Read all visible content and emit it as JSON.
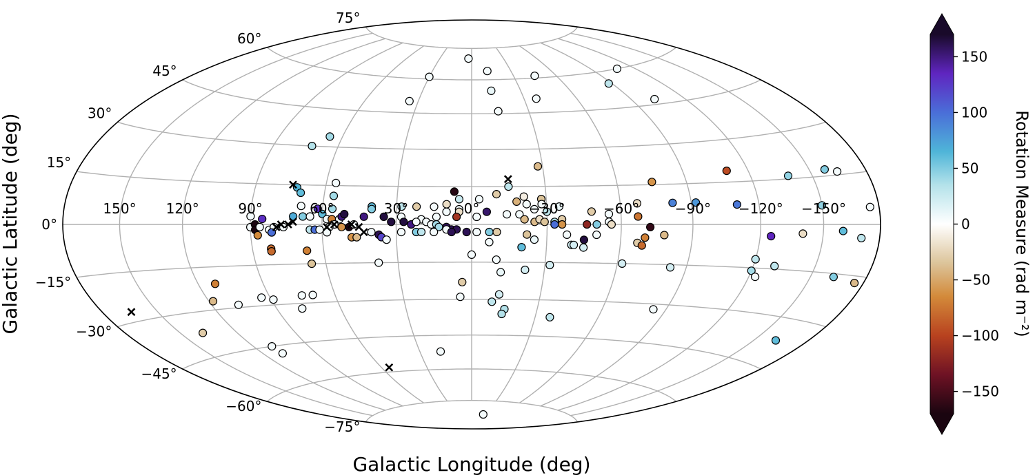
{
  "chart_data": {
    "type": "scatter",
    "projection": "hammer-aitoff",
    "xlabel": "Galactic Longitude (deg)",
    "ylabel": "Galactic Latitude (deg)",
    "grid": true,
    "x_tick_labels": [
      {
        "lon": 150,
        "label": "150°"
      },
      {
        "lon": 120,
        "label": "120°"
      },
      {
        "lon": 90,
        "label": "90°"
      },
      {
        "lon": 60,
        "label": "60°"
      },
      {
        "lon": 30,
        "label": "30°"
      },
      {
        "lon": 0,
        "label": "0°"
      },
      {
        "lon": -30,
        "label": "−30°"
      },
      {
        "lon": -60,
        "label": "−60°"
      },
      {
        "lon": -90,
        "label": "−90°"
      },
      {
        "lon": -120,
        "label": "−120°"
      },
      {
        "lon": -150,
        "label": "−150°"
      }
    ],
    "y_tick_labels": [
      {
        "lat": 75,
        "label": "75°"
      },
      {
        "lat": 60,
        "label": "60°"
      },
      {
        "lat": 45,
        "label": "45°"
      },
      {
        "lat": 30,
        "label": "30°"
      },
      {
        "lat": 15,
        "label": "15°"
      },
      {
        "lat": 0,
        "label": "0°"
      },
      {
        "lat": -15,
        "label": "−15°"
      },
      {
        "lat": -30,
        "label": "−30°"
      },
      {
        "lat": -45,
        "label": "−45°"
      },
      {
        "lat": -60,
        "label": "−60°"
      },
      {
        "lat": -75,
        "label": "−75°"
      }
    ],
    "colorbar": {
      "label": "Rotation Measure (rad m⁻²)",
      "range": [
        -170,
        170
      ],
      "extend": "both",
      "ticks": [
        {
          "value": 150,
          "label": "150"
        },
        {
          "value": 100,
          "label": "100"
        },
        {
          "value": 50,
          "label": "50"
        },
        {
          "value": 0,
          "label": "0"
        },
        {
          "value": -50,
          "label": "−50"
        },
        {
          "value": -100,
          "label": "−100"
        },
        {
          "value": -150,
          "label": "−150"
        }
      ],
      "stops": [
        {
          "v": -170,
          "c": "#1a0510"
        },
        {
          "v": -135,
          "c": "#6e1224"
        },
        {
          "v": -100,
          "c": "#b8421f"
        },
        {
          "v": -65,
          "c": "#d38a3a"
        },
        {
          "v": -35,
          "c": "#dcc49a"
        },
        {
          "v": 0,
          "c": "#ffffff"
        },
        {
          "v": 35,
          "c": "#b4e2ea"
        },
        {
          "v": 65,
          "c": "#4fb5d8"
        },
        {
          "v": 100,
          "c": "#4a6ed8"
        },
        {
          "v": 135,
          "c": "#5f25c0"
        },
        {
          "v": 170,
          "c": "#190a2a"
        }
      ]
    },
    "points": [
      {
        "lon": 3,
        "lat": 70,
        "rm": 5
      },
      {
        "lon": -12,
        "lat": 64,
        "rm": 5
      },
      {
        "lon": -45,
        "lat": 61,
        "rm": 5
      },
      {
        "lon": -108,
        "lat": 60,
        "rm": 5
      },
      {
        "lon": -88,
        "lat": 55,
        "rm": 30
      },
      {
        "lon": 30,
        "lat": 61,
        "rm": 5
      },
      {
        "lon": -12,
        "lat": 55,
        "rm": 10
      },
      {
        "lon": -37,
        "lat": 51,
        "rm": 5
      },
      {
        "lon": 35,
        "lat": 50,
        "rm": 5
      },
      {
        "lon": -14,
        "lat": 46,
        "rm": 5
      },
      {
        "lon": -103,
        "lat": 47,
        "rm": 5
      },
      {
        "lon": 66,
        "lat": 34,
        "rm": 40
      },
      {
        "lon": 72,
        "lat": 30,
        "rm": 35
      },
      {
        "lon": -28,
        "lat": 23,
        "rm": -40
      },
      {
        "lon": -110,
        "lat": 19,
        "rm": -95
      },
      {
        "lon": -138,
        "lat": 16,
        "rm": 45
      },
      {
        "lon": -158,
        "lat": 17,
        "rm": 50
      },
      {
        "lon": -164,
        "lat": 16,
        "rm": 5
      },
      {
        "lon": -75,
        "lat": 16,
        "rm": -60
      },
      {
        "lon": -15,
        "lat": 15,
        "rm": 30
      },
      {
        "lon": 56,
        "lat": 16,
        "rm": 5
      },
      {
        "lon": 72,
        "lat": 14,
        "rm": 65
      },
      {
        "lon": 70,
        "lat": 12,
        "rm": 60
      },
      {
        "lon": 56,
        "lat": 11,
        "rm": 40
      },
      {
        "lon": 7,
        "lat": 13,
        "rm": -165
      },
      {
        "lon": -10,
        "lat": 12,
        "rm": -30
      },
      {
        "lon": 5,
        "lat": 10,
        "rm": 25
      },
      {
        "lon": -21,
        "lat": 11,
        "rm": -10
      },
      {
        "lon": -28,
        "lat": 10,
        "rm": -35
      },
      {
        "lon": -28,
        "lat": 8,
        "rm": 5
      },
      {
        "lon": -18,
        "lat": 9,
        "rm": -45
      },
      {
        "lon": -22,
        "lat": 8,
        "rm": 5
      },
      {
        "lon": -67,
        "lat": 8,
        "rm": -20
      },
      {
        "lon": -82,
        "lat": 8,
        "rm": 90
      },
      {
        "lon": -92,
        "lat": 8,
        "rm": 80
      },
      {
        "lon": -110,
        "lat": 7,
        "rm": 95
      },
      {
        "lon": -150,
        "lat": 6,
        "rm": 45
      },
      {
        "lon": -175,
        "lat": 5,
        "rm": 5
      },
      {
        "lon": -3,
        "lat": 10,
        "rm": 5
      },
      {
        "lon": 56,
        "lat": 6,
        "rm": 40
      },
      {
        "lon": 62,
        "lat": 6,
        "rm": 130
      },
      {
        "lon": 69,
        "lat": 7,
        "rm": 5
      },
      {
        "lon": 40,
        "lat": 7,
        "rm": 60
      },
      {
        "lon": 40,
        "lat": 6,
        "rm": 50
      },
      {
        "lon": 28,
        "lat": 7,
        "rm": 30
      },
      {
        "lon": 22,
        "lat": 7,
        "rm": -30
      },
      {
        "lon": 15,
        "lat": 7,
        "rm": 5
      },
      {
        "lon": 10,
        "lat": 8,
        "rm": -20
      },
      {
        "lon": 5,
        "lat": 6,
        "rm": 5
      },
      {
        "lon": -35,
        "lat": 7,
        "rm": 10
      },
      {
        "lon": -25,
        "lat": 6,
        "rm": 5
      },
      {
        "lon": -6,
        "lat": 5,
        "rm": 155
      },
      {
        "lon": -14,
        "lat": 4,
        "rm": 5
      },
      {
        "lon": -19,
        "lat": 4,
        "rm": 5
      },
      {
        "lon": -30,
        "lat": 5,
        "rm": 30
      },
      {
        "lon": -48,
        "lat": 5,
        "rm": -30
      },
      {
        "lon": -55,
        "lat": 4,
        "rm": 5
      },
      {
        "lon": -67,
        "lat": 3,
        "rm": -75
      },
      {
        "lon": 5,
        "lat": 5,
        "rm": -20
      },
      {
        "lon": 10,
        "lat": 5,
        "rm": 5
      },
      {
        "lon": 72,
        "lat": 3,
        "rm": 70
      },
      {
        "lon": 85,
        "lat": 2,
        "rm": 130
      },
      {
        "lon": 90,
        "lat": 3,
        "rm": 5
      },
      {
        "lon": 68,
        "lat": 3,
        "rm": 50
      },
      {
        "lon": 65,
        "lat": 3,
        "rm": 5
      },
      {
        "lon": 60,
        "lat": 4,
        "rm": 60
      },
      {
        "lon": 58,
        "lat": 2,
        "rm": 5
      },
      {
        "lon": 56,
        "lat": 2,
        "rm": -70
      },
      {
        "lon": 53,
        "lat": 2,
        "rm": 5
      },
      {
        "lon": 52,
        "lat": 3,
        "rm": 150
      },
      {
        "lon": 51,
        "lat": 4,
        "rm": 165
      },
      {
        "lon": 43,
        "lat": 3,
        "rm": 150
      },
      {
        "lon": 35,
        "lat": 3,
        "rm": 165
      },
      {
        "lon": 28,
        "lat": 3,
        "rm": 5
      },
      {
        "lon": 20,
        "lat": 2,
        "rm": 5
      },
      {
        "lon": 14,
        "lat": 3,
        "rm": 5
      },
      {
        "lon": 6,
        "lat": 3,
        "rm": -110
      },
      {
        "lon": -2,
        "lat": 3,
        "rm": 5
      },
      {
        "lon": -21,
        "lat": 2,
        "rm": -40
      },
      {
        "lon": -25,
        "lat": 1,
        "rm": -40
      },
      {
        "lon": -27,
        "lat": 2,
        "rm": -20
      },
      {
        "lon": -29,
        "lat": 1,
        "rm": -35
      },
      {
        "lon": -33,
        "lat": 1,
        "rm": 35
      },
      {
        "lon": -36,
        "lat": 2,
        "rm": -30
      },
      {
        "lon": -33,
        "lat": 0,
        "rm": 100
      },
      {
        "lon": -36,
        "lat": 0,
        "rm": -60
      },
      {
        "lon": -46,
        "lat": 0,
        "rm": -120
      },
      {
        "lon": -50,
        "lat": 0,
        "rm": 50
      },
      {
        "lon": -55,
        "lat": 1,
        "rm": 5
      },
      {
        "lon": -56,
        "lat": 0,
        "rm": -20
      },
      {
        "lon": -72,
        "lat": -1,
        "rm": -160
      },
      {
        "lon": 55,
        "lat": 0,
        "rm": 5
      },
      {
        "lon": 57,
        "lat": -1,
        "rm": 5
      },
      {
        "lon": 52,
        "lat": -1,
        "rm": -60
      },
      {
        "lon": 49,
        "lat": -1,
        "rm": -170
      },
      {
        "lon": 47,
        "lat": 0,
        "rm": 5
      },
      {
        "lon": 32,
        "lat": 1,
        "rm": 165
      },
      {
        "lon": 27,
        "lat": 1,
        "rm": 165
      },
      {
        "lon": 24,
        "lat": 0,
        "rm": 150
      },
      {
        "lon": 22,
        "lat": 1,
        "rm": 5
      },
      {
        "lon": 18,
        "lat": 1,
        "rm": 5
      },
      {
        "lon": 16,
        "lat": 0,
        "rm": 5
      },
      {
        "lon": 14,
        "lat": 0,
        "rm": 40
      },
      {
        "lon": 13,
        "lat": -1,
        "rm": 40
      },
      {
        "lon": 10,
        "lat": -1,
        "rm": 160
      },
      {
        "lon": 8,
        "lat": -2,
        "rm": 160
      },
      {
        "lon": 6,
        "lat": -2,
        "rm": 160
      },
      {
        "lon": 10,
        "lat": -2,
        "rm": 5
      },
      {
        "lon": 90,
        "lat": -1,
        "rm": 5
      },
      {
        "lon": 88,
        "lat": 0,
        "rm": -170
      },
      {
        "lon": 88,
        "lat": -2,
        "rm": -170
      },
      {
        "lon": 86,
        "lat": -1,
        "rm": 5
      },
      {
        "lon": 82,
        "lat": -2,
        "rm": 5
      },
      {
        "lon": 80,
        "lat": -1,
        "rm": 5
      },
      {
        "lon": 76,
        "lat": -1,
        "rm": 5
      },
      {
        "lon": 87,
        "lat": -4,
        "rm": -65
      },
      {
        "lon": 81,
        "lat": -3,
        "rm": 100
      },
      {
        "lon": 65,
        "lat": -2,
        "rm": 30
      },
      {
        "lon": 63,
        "lat": -2,
        "rm": 100
      },
      {
        "lon": 61,
        "lat": -2,
        "rm": 5
      },
      {
        "lon": 58,
        "lat": -3,
        "rm": 5
      },
      {
        "lon": 40,
        "lat": -3,
        "rm": 5
      },
      {
        "lon": 37,
        "lat": -4,
        "rm": 160
      },
      {
        "lon": 36,
        "lat": -5,
        "rm": 120
      },
      {
        "lon": 28,
        "lat": -3,
        "rm": 5
      },
      {
        "lon": 22,
        "lat": -3,
        "rm": 50
      },
      {
        "lon": 20,
        "lat": -3,
        "rm": 30
      },
      {
        "lon": 15,
        "lat": -3,
        "rm": 5
      },
      {
        "lon": 8,
        "lat": -3,
        "rm": 160
      },
      {
        "lon": 2,
        "lat": -3,
        "rm": 160
      },
      {
        "lon": -2,
        "lat": -3,
        "rm": 5
      },
      {
        "lon": -7,
        "lat": -3,
        "rm": 50
      },
      {
        "lon": -10,
        "lat": -3,
        "rm": -30
      },
      {
        "lon": 48,
        "lat": -5,
        "rm": -60
      },
      {
        "lon": 46,
        "lat": -5,
        "rm": -40
      },
      {
        "lon": 34,
        "lat": -6,
        "rm": 5
      },
      {
        "lon": -22,
        "lat": -4,
        "rm": -35
      },
      {
        "lon": -38,
        "lat": -4,
        "rm": 5
      },
      {
        "lon": -50,
        "lat": -4,
        "rm": 5
      },
      {
        "lon": -70,
        "lat": -5,
        "rm": -70
      },
      {
        "lon": -78,
        "lat": -4,
        "rm": -40
      },
      {
        "lon": -140,
        "lat": -3,
        "rm": -20
      },
      {
        "lon": -160,
        "lat": -2,
        "rm": 60
      },
      {
        "lon": -170,
        "lat": -4,
        "rm": 30
      },
      {
        "lon": -125,
        "lat": -4,
        "rm": 135
      },
      {
        "lon": -25,
        "lat": -6,
        "rm": 10
      },
      {
        "lon": -45,
        "lat": -6,
        "rm": 165
      },
      {
        "lon": -40,
        "lat": -8,
        "rm": 20
      },
      {
        "lon": -41,
        "lat": -8,
        "rm": 20
      },
      {
        "lon": -45,
        "lat": -9,
        "rm": 20
      },
      {
        "lon": -67,
        "lat": -7,
        "rm": -30
      },
      {
        "lon": -69,
        "lat": -8,
        "rm": -80
      },
      {
        "lon": -20,
        "lat": -9,
        "rm": 60
      },
      {
        "lon": -7,
        "lat": -7,
        "rm": 5
      },
      {
        "lon": 82,
        "lat": -9,
        "rm": -80
      },
      {
        "lon": 82,
        "lat": -10,
        "rm": -80
      },
      {
        "lon": 67,
        "lat": -10,
        "rm": -70
      },
      {
        "lon": 0,
        "lat": -12,
        "rm": 5
      },
      {
        "lon": 66,
        "lat": -15,
        "rm": -35
      },
      {
        "lon": 38,
        "lat": -15,
        "rm": 5
      },
      {
        "lon": -10,
        "lat": -14,
        "rm": 5
      },
      {
        "lon": -120,
        "lat": -12,
        "rm": 30
      },
      {
        "lon": -130,
        "lat": -14,
        "rm": 30
      },
      {
        "lon": -62,
        "lat": -15,
        "rm": 20
      },
      {
        "lon": -32,
        "lat": -16,
        "rm": 20
      },
      {
        "lon": -83,
        "lat": -16,
        "rm": 20
      },
      {
        "lon": -120,
        "lat": -16,
        "rm": 40
      },
      {
        "lon": -123,
        "lat": -18,
        "rm": 5
      },
      {
        "lon": -162,
        "lat": -16,
        "rm": 50
      },
      {
        "lon": -175,
        "lat": -17,
        "rm": -40
      },
      {
        "lon": -22,
        "lat": -18,
        "rm": 20
      },
      {
        "lon": -12,
        "lat": -19,
        "rm": 10
      },
      {
        "lon": 112,
        "lat": -21,
        "rm": -70
      },
      {
        "lon": 4,
        "lat": -23,
        "rm": -30
      },
      {
        "lon": 75,
        "lat": -27,
        "rm": 5
      },
      {
        "lon": 70,
        "lat": -27,
        "rm": 5
      },
      {
        "lon": 94,
        "lat": -27,
        "rm": 5
      },
      {
        "lon": 89,
        "lat": -28,
        "rm": 5
      },
      {
        "lon": 118,
        "lat": -27,
        "rm": -40
      },
      {
        "lon": 107,
        "lat": -29,
        "rm": 5
      },
      {
        "lon": 5,
        "lat": -29,
        "rm": 5
      },
      {
        "lon": -12,
        "lat": -28,
        "rm": 20
      },
      {
        "lon": 78,
        "lat": -32,
        "rm": 5
      },
      {
        "lon": -84,
        "lat": -32,
        "rm": 5
      },
      {
        "lon": -9,
        "lat": -31,
        "rm": 30
      },
      {
        "lon": -15,
        "lat": -34,
        "rm": 35
      },
      {
        "lon": -14,
        "lat": -36,
        "rm": 35
      },
      {
        "lon": -37,
        "lat": -37,
        "rm": 30
      },
      {
        "lon": -162,
        "lat": -37,
        "rm": 60
      },
      {
        "lon": 138,
        "lat": -37,
        "rm": -30
      },
      {
        "lon": 110,
        "lat": -45,
        "rm": 5
      },
      {
        "lon": 109,
        "lat": -48,
        "rm": 5
      },
      {
        "lon": 18,
        "lat": -52,
        "rm": 5
      },
      {
        "lon": -25,
        "lat": -82,
        "rm": 5
      }
    ],
    "markers_x": [
      {
        "lon": 74,
        "lat": 15
      },
      {
        "lon": -15,
        "lat": 18
      },
      {
        "lon": 72,
        "lat": 1
      },
      {
        "lon": 74,
        "lat": 0
      },
      {
        "lon": 77,
        "lat": 0
      },
      {
        "lon": 79,
        "lat": -1
      },
      {
        "lon": 55,
        "lat": 0
      },
      {
        "lon": 58,
        "lat": -1
      },
      {
        "lon": 48,
        "lat": 0
      },
      {
        "lon": 45,
        "lat": -1
      },
      {
        "lon": 43,
        "lat": -3
      },
      {
        "lon": 164,
        "lat": -27
      },
      {
        "lon": 55,
        "lat": -58
      }
    ]
  }
}
